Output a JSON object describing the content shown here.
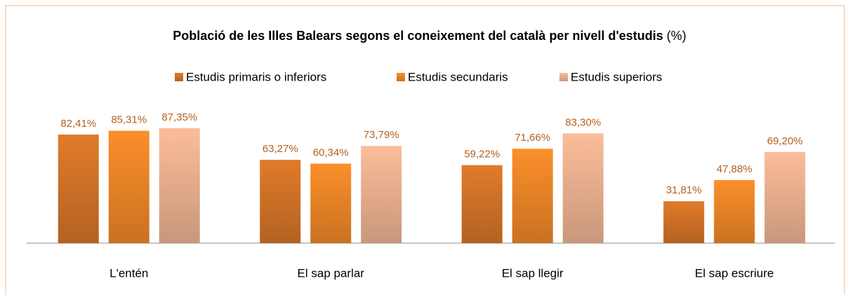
{
  "chart_data": {
    "type": "bar",
    "title": "Població de les Illes Balears segons el coneixement del català per nivell d'estudis",
    "title_unit": "(%)",
    "categories": [
      "L'entén",
      "El sap parlar",
      "El sap llegir",
      "El sap escriure"
    ],
    "series": [
      {
        "name": "Estudis primaris o inferiors",
        "color": "#e07b2a",
        "values": [
          82.41,
          63.27,
          59.22,
          31.81
        ],
        "value_labels": [
          "82,41%",
          "63,27%",
          "59,22%",
          "31,81%"
        ]
      },
      {
        "name": "Estudis secundaris",
        "color": "#fb8f2a",
        "values": [
          85.31,
          60.34,
          71.66,
          47.88
        ],
        "value_labels": [
          "85,31%",
          "60,34%",
          "71,66%",
          "47,88%"
        ]
      },
      {
        "name": "Estudis superiors",
        "color": "#fbbd9a",
        "values": [
          87.35,
          73.79,
          83.3,
          69.2
        ],
        "value_labels": [
          "87,35%",
          "73,79%",
          "83,30%",
          "69,20%"
        ]
      }
    ],
    "ylim": [
      0,
      100
    ]
  }
}
